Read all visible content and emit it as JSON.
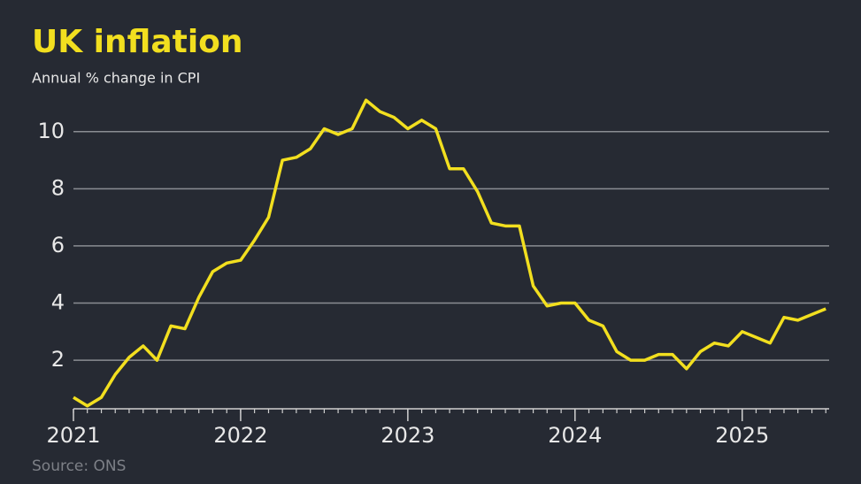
{
  "chart_data": {
    "type": "line",
    "title": "UK inflation",
    "subtitle": "Annual % change in CPI",
    "source": "Source: ONS",
    "x": [
      2021,
      2021.083,
      2021.167,
      2021.25,
      2021.333,
      2021.417,
      2021.5,
      2021.583,
      2021.667,
      2021.75,
      2021.833,
      2021.917,
      2022,
      2022.083,
      2022.167,
      2022.25,
      2022.333,
      2022.417,
      2022.5,
      2022.583,
      2022.667,
      2022.75,
      2022.833,
      2022.917,
      2023,
      2023.083,
      2023.167,
      2023.25,
      2023.333,
      2023.417,
      2023.5,
      2023.583,
      2023.667,
      2023.75,
      2023.833,
      2023.917,
      2024,
      2024.083,
      2024.167,
      2024.25,
      2024.333,
      2024.417,
      2024.5,
      2024.583,
      2024.667,
      2024.75,
      2024.833,
      2024.917,
      2025,
      2025.083,
      2025.167,
      2025.25,
      2025.333,
      2025.417,
      2025.5
    ],
    "series": [
      {
        "name": "CPI",
        "color": "#f2df1f",
        "values": [
          0.7,
          0.4,
          0.7,
          1.5,
          2.1,
          2.5,
          2.0,
          3.2,
          3.1,
          4.2,
          5.1,
          5.4,
          5.5,
          6.2,
          7.0,
          9.0,
          9.1,
          9.4,
          10.1,
          9.9,
          10.1,
          11.1,
          10.7,
          10.5,
          10.1,
          10.4,
          10.1,
          8.7,
          8.7,
          7.9,
          6.8,
          6.7,
          6.7,
          4.6,
          3.9,
          4.0,
          4.0,
          3.4,
          3.2,
          2.3,
          2.0,
          2.0,
          2.2,
          2.2,
          1.7,
          2.3,
          2.6,
          2.5,
          3.0,
          2.8,
          2.6,
          3.5,
          3.4,
          3.6,
          3.8
        ]
      }
    ],
    "xlim": [
      2021,
      2025.52
    ],
    "xticks": [
      2021,
      2022,
      2023,
      2024,
      2025
    ],
    "ylim": [
      0.3,
      11.2
    ],
    "yticks": [
      2,
      4,
      6,
      8,
      10
    ],
    "grid": true
  }
}
